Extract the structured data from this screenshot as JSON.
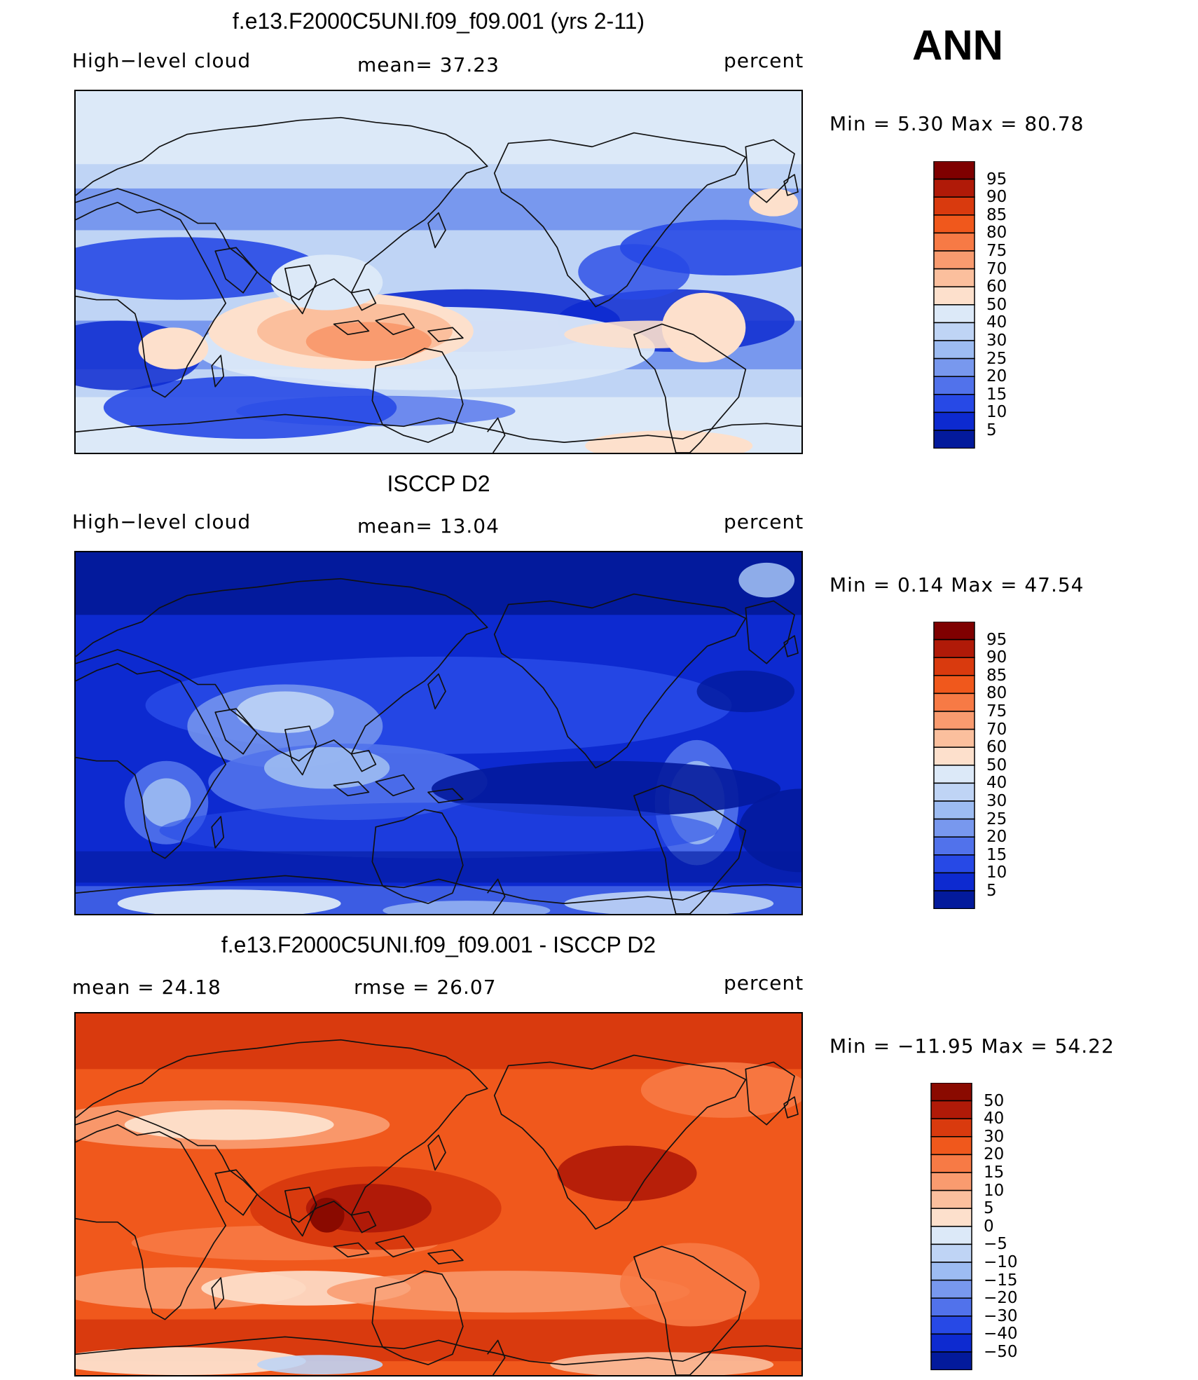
{
  "season": "ANN",
  "panels": [
    {
      "title": "f.e13.F2000C5UNI.f09_f09.001 (yrs 2-11)",
      "left_label": "High−level cloud",
      "center_label": "mean=   37.23",
      "right_label": "percent",
      "min_max": "Min =    5.30 Max =   80.78",
      "legend_levels": [
        "95",
        "90",
        "85",
        "80",
        "75",
        "70",
        "60",
        "50",
        "40",
        "30",
        "25",
        "20",
        "15",
        "10",
        "5"
      ],
      "legend_colors": [
        "#7f0000",
        "#b01a08",
        "#d93a0e",
        "#f0581c",
        "#f77a45",
        "#f99b6f",
        "#fbbf9d",
        "#fde0cc",
        "#dce9f8",
        "#bfd4f5",
        "#9dbcf2",
        "#7898ee",
        "#5172eb",
        "#2749e6",
        "#0d2ad0",
        "#031a9c"
      ],
      "map_style": "model"
    },
    {
      "title": "ISCCP D2",
      "left_label": "High−level cloud",
      "center_label": "mean=   13.04",
      "right_label": "percent",
      "min_max": "Min =    0.14 Max =   47.54",
      "legend_levels": [
        "95",
        "90",
        "85",
        "80",
        "75",
        "70",
        "60",
        "50",
        "40",
        "30",
        "25",
        "20",
        "15",
        "10",
        "5"
      ],
      "legend_colors": [
        "#7f0000",
        "#b01a08",
        "#d93a0e",
        "#f0581c",
        "#f77a45",
        "#f99b6f",
        "#fbbf9d",
        "#fde0cc",
        "#dce9f8",
        "#bfd4f5",
        "#9dbcf2",
        "#7898ee",
        "#5172eb",
        "#2749e6",
        "#0d2ad0",
        "#031a9c"
      ],
      "map_style": "obs"
    },
    {
      "title": "f.e13.F2000C5UNI.f09_f09.001 - ISCCP D2",
      "left_label": "mean =   24.18",
      "center_label": "rmse =   26.07",
      "right_label": "percent",
      "min_max": "Min = −11.95 Max =   54.22",
      "legend_levels": [
        "50",
        "40",
        "30",
        "20",
        "15",
        "10",
        "5",
        "0",
        "−5",
        "−10",
        "−15",
        "−20",
        "−30",
        "−40",
        "−50"
      ],
      "legend_colors": [
        "#8a0a00",
        "#b01a08",
        "#d93a0e",
        "#f0581c",
        "#f77a45",
        "#f99b6f",
        "#fbbf9d",
        "#fde0cc",
        "#dce9f8",
        "#bfd4f5",
        "#9dbcf2",
        "#7898ee",
        "#5172eb",
        "#2749e6",
        "#0d2ad0",
        "#031a9c"
      ],
      "map_style": "diff"
    }
  ]
}
